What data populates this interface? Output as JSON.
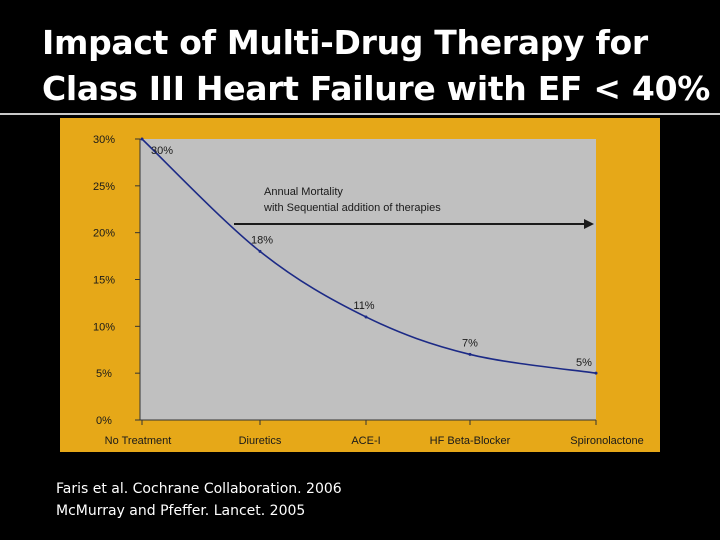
{
  "slide": {
    "title_line1": "Impact of Multi-Drug Therapy for",
    "title_line2": "Class III Heart Failure with EF < 40%",
    "citation_1": "Faris et al. Cochrane Collaboration. 2006",
    "citation_2": "McMurray and Pfeffer. Lancet. 2005"
  },
  "colors": {
    "background": "#000000",
    "title": "#ffffff",
    "panel": "#e6a818",
    "plot_area": "#c0c0c0",
    "line": "#1c2a86",
    "arrow": "#1a1a1a"
  },
  "chart_data": {
    "type": "line",
    "categories": [
      "No Treatment",
      "Diuretics",
      "ACE-I",
      "HF Beta-Blocker",
      "Spironolactone"
    ],
    "values": [
      30,
      18,
      11,
      7,
      5
    ],
    "data_labels": [
      "30%",
      "18%",
      "11%",
      "7%",
      "5%"
    ],
    "yticks": [
      "0%",
      "5%",
      "10%",
      "15%",
      "20%",
      "25%",
      "30%"
    ],
    "ylim": [
      0,
      30
    ],
    "annotation": "Annual Mortality with Sequential addition of therapies",
    "annotation_line1": "Annual Mortality",
    "annotation_line2": "with Sequential addition of therapies",
    "grid": false
  }
}
